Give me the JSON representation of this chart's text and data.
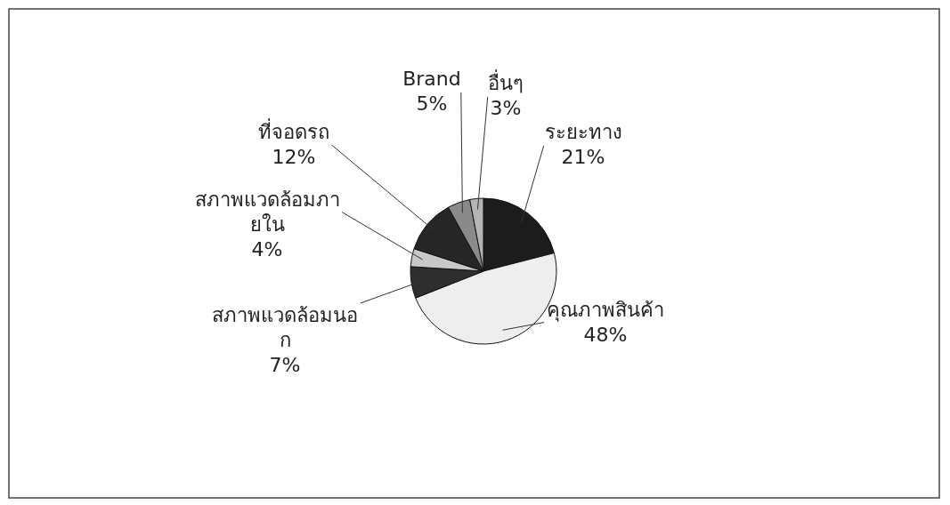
{
  "chart_data": {
    "type": "pie",
    "categories": [
      "ระยะทาง",
      "คุณภาพสินค้า",
      "สภาพแวดล้อมนอก",
      "สภาพแวดล้อมภายใน",
      "ที่จอดรถ",
      "Brand",
      "อื่นๆ"
    ],
    "values": [
      21,
      48,
      7,
      4,
      12,
      5,
      3
    ],
    "value_labels": [
      "21%",
      "48%",
      "7%",
      "4%",
      "12%",
      "5%",
      "3%"
    ],
    "colors": [
      "#1c1c1c",
      "#eeeeee",
      "#2e2e2e",
      "#c8c8c8",
      "#262626",
      "#8a8a8a",
      "#b4b4b4"
    ]
  }
}
